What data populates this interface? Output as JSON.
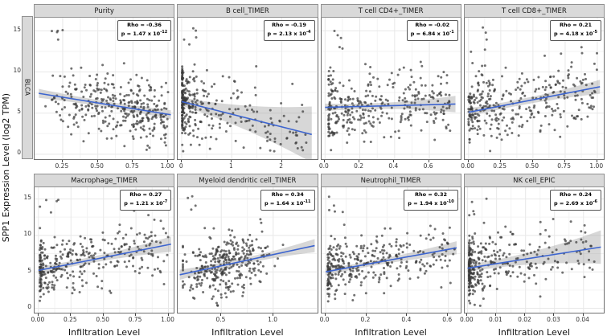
{
  "chart_data": {
    "type": "scatter",
    "ylabel": "SPP1 Expression Level (log2 TPM)",
    "xlabel": "Infiltration Level",
    "facet_row_label": "BLCA",
    "ylim": [
      -0.6,
      16.6
    ],
    "yticks": [
      {
        "v": 0,
        "l": "0"
      },
      {
        "v": 5,
        "l": "5"
      },
      {
        "v": 10,
        "l": "10"
      },
      {
        "v": 15,
        "l": "15"
      }
    ],
    "colors": {
      "point": "#3a3a3a",
      "line": "#3c64cf",
      "band": "#8f8f8f",
      "strip_bg": "#d9d9d9",
      "panel_border": "#6f6f6f",
      "grid_major": "#e8e8e8",
      "grid_minor": "#f3f3f3"
    },
    "panels": [
      {
        "title": "Purity",
        "rho_label": "Rho = -0.36",
        "p_label": "p = 1.47 x 10",
        "p_exp": "-12",
        "xlim": [
          0.05,
          1.04
        ],
        "xticks": [
          {
            "v": 0.25,
            "l": "0.25"
          },
          {
            "v": 0.5,
            "l": "0.50"
          },
          {
            "v": 0.75,
            "l": "0.75"
          },
          {
            "v": 1.0,
            "l": "1.00"
          }
        ],
        "n": 330,
        "seed": 101,
        "outliers": 5,
        "ysd": 2.0,
        "xdist": {
          "type": "pow",
          "k": 0.65,
          "min": 0.12,
          "max": 1.0
        },
        "trend": {
          "x0": 0.08,
          "y0": 7.4,
          "x1": 1.02,
          "y1": 4.8
        },
        "band": [
          0.55,
          0.35,
          0.55
        ]
      },
      {
        "title": "B cell_TIMER",
        "rho_label": "Rho = -0.19",
        "p_label": "p = 2.13 x 10",
        "p_exp": "-4",
        "xlim": [
          -0.08,
          2.7
        ],
        "xticks": [
          {
            "v": 0,
            "l": "0"
          },
          {
            "v": 1,
            "l": "1"
          },
          {
            "v": 2,
            "l": "2"
          }
        ],
        "n": 330,
        "seed": 202,
        "outliers": 5,
        "ysd": 2.2,
        "xdist": {
          "type": "pow",
          "k": 4.0,
          "min": 0.01,
          "max": 2.5
        },
        "trend": {
          "x0": 0.0,
          "y0": 6.4,
          "x1": 2.6,
          "y1": 2.4
        },
        "band": [
          0.5,
          1.5,
          3.4
        ]
      },
      {
        "title": "T cell CD4+_TIMER",
        "rho_label": "Rho = -0.02",
        "p_label": "p = 6.84 x 10",
        "p_exp": "-1",
        "xlim": [
          -0.02,
          0.78
        ],
        "xticks": [
          {
            "v": 0.0,
            "l": "0.0"
          },
          {
            "v": 0.2,
            "l": "0.2"
          },
          {
            "v": 0.4,
            "l": "0.4"
          },
          {
            "v": 0.6,
            "l": "0.6"
          }
        ],
        "n": 330,
        "seed": 303,
        "outliers": 5,
        "ysd": 2.15,
        "xdist": {
          "type": "pow",
          "k": 2.0,
          "min": 0.02,
          "max": 0.72
        },
        "trend": {
          "x0": 0.0,
          "y0": 5.7,
          "x1": 0.75,
          "y1": 6.1
        },
        "band": [
          0.45,
          0.4,
          1.0
        ]
      },
      {
        "title": "T cell CD8+_TIMER",
        "rho_label": "Rho = 0.21",
        "p_label": "p = 4.18 x 10",
        "p_exp": "-5",
        "xlim": [
          -0.03,
          1.05
        ],
        "xticks": [
          {
            "v": 0.0,
            "l": "0.00"
          },
          {
            "v": 0.25,
            "l": "0.25"
          },
          {
            "v": 0.5,
            "l": "0.50"
          },
          {
            "v": 0.75,
            "l": "0.75"
          },
          {
            "v": 1.0,
            "l": "1.00"
          }
        ],
        "n": 330,
        "seed": 404,
        "outliers": 4,
        "ysd": 2.1,
        "xdist": {
          "type": "pow",
          "k": 1.8,
          "min": 0.0,
          "max": 1.0
        },
        "trend": {
          "x0": 0.0,
          "y0": 5.1,
          "x1": 1.02,
          "y1": 8.2
        },
        "band": [
          0.5,
          0.4,
          0.85
        ]
      },
      {
        "title": "Macrophage_TIMER",
        "rho_label": "Rho = 0.27",
        "p_label": "p = 1.21 x 10",
        "p_exp": "-7",
        "xlim": [
          -0.03,
          1.04
        ],
        "xticks": [
          {
            "v": 0.0,
            "l": "0.00"
          },
          {
            "v": 0.25,
            "l": "0.25"
          },
          {
            "v": 0.5,
            "l": "0.50"
          },
          {
            "v": 0.75,
            "l": "0.75"
          },
          {
            "v": 1.0,
            "l": "1.00"
          }
        ],
        "n": 330,
        "seed": 505,
        "outliers": 5,
        "ysd": 2.1,
        "xdist": {
          "type": "pow",
          "k": 2.4,
          "min": 0.01,
          "max": 1.0
        },
        "trend": {
          "x0": 0.0,
          "y0": 5.2,
          "x1": 1.02,
          "y1": 8.8
        },
        "band": [
          0.5,
          0.45,
          1.05
        ]
      },
      {
        "title": "Myeloid dendritic cell_TIMER",
        "rho_label": "Rho = 0.34",
        "p_label": "p = 1.64 x 10",
        "p_exp": "-11",
        "xlim": [
          0.08,
          1.42
        ],
        "xticks": [
          {
            "v": 0.5,
            "l": "0.5"
          },
          {
            "v": 1.0,
            "l": "1.0"
          }
        ],
        "n": 330,
        "seed": 606,
        "outliers": 4,
        "ysd": 2.05,
        "xdist": {
          "type": "norm",
          "mean": 0.55,
          "sd": 0.21,
          "min": 0.13,
          "max": 1.38
        },
        "trend": {
          "x0": 0.1,
          "y0": 4.6,
          "x1": 1.4,
          "y1": 8.6
        },
        "band": [
          0.7,
          0.4,
          0.9
        ]
      },
      {
        "title": "Neutrophil_TIMER",
        "rho_label": "Rho = 0.32",
        "p_label": "p = 1.94 x 10",
        "p_exp": "-10",
        "xlim": [
          -0.02,
          0.66
        ],
        "xticks": [
          {
            "v": 0.0,
            "l": "0.0"
          },
          {
            "v": 0.2,
            "l": "0.2"
          },
          {
            "v": 0.4,
            "l": "0.4"
          },
          {
            "v": 0.6,
            "l": "0.6"
          }
        ],
        "n": 330,
        "seed": 707,
        "outliers": 5,
        "ysd": 2.05,
        "xdist": {
          "type": "pow",
          "k": 2.0,
          "min": 0.01,
          "max": 0.63
        },
        "trend": {
          "x0": 0.0,
          "y0": 5.0,
          "x1": 0.64,
          "y1": 8.3
        },
        "band": [
          0.45,
          0.4,
          0.9
        ]
      },
      {
        "title": "NK cell_EPIC",
        "rho_label": "Rho = 0.24",
        "p_label": "p = 2.69 x 10",
        "p_exp": "-6",
        "xlim": [
          -0.001,
          0.047
        ],
        "xticks": [
          {
            "v": 0.0,
            "l": "0.00"
          },
          {
            "v": 0.01,
            "l": "0.01"
          },
          {
            "v": 0.02,
            "l": "0.02"
          },
          {
            "v": 0.03,
            "l": "0.03"
          },
          {
            "v": 0.04,
            "l": "0.04"
          }
        ],
        "n": 330,
        "seed": 808,
        "outliers": 5,
        "ysd": 2.15,
        "xdist": {
          "type": "pow",
          "k": 3.2,
          "min": 0.0005,
          "max": 0.044
        },
        "trend": {
          "x0": 0.0,
          "y0": 5.5,
          "x1": 0.046,
          "y1": 8.4
        },
        "band": [
          0.5,
          0.9,
          2.3
        ]
      }
    ]
  }
}
